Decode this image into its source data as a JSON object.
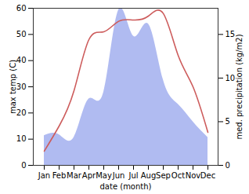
{
  "chart_data": {
    "type": "line",
    "xlabel": "date (month)",
    "categories": [
      "Jan",
      "Feb",
      "Mar",
      "Apr",
      "May",
      "Jun",
      "Jul",
      "Aug",
      "Sep",
      "Oct",
      "Nov",
      "Dec"
    ],
    "series": [
      {
        "name": "med. precipitation (kg/m2)",
        "type": "area",
        "axis": "y2",
        "color": "#a7b4f0",
        "values": [
          3.4,
          3.5,
          3.2,
          7.6,
          8.4,
          17.8,
          14.8,
          16.2,
          9.8,
          7,
          5,
          3.2
        ]
      },
      {
        "name": "max temp (C)",
        "type": "line",
        "axis": "y",
        "color": "#cd5c5c",
        "values": [
          5.4,
          15,
          28.5,
          48,
          51,
          55,
          55.5,
          57,
          58,
          42,
          30,
          12.6
        ]
      }
    ],
    "ylim": [
      0,
      60
    ],
    "yticks": [
      0,
      10,
      20,
      30,
      40,
      50,
      60
    ],
    "y2lim": [
      0,
      18
    ],
    "y2ticks": [
      0,
      5,
      10,
      15
    ],
    "grid": false
  }
}
